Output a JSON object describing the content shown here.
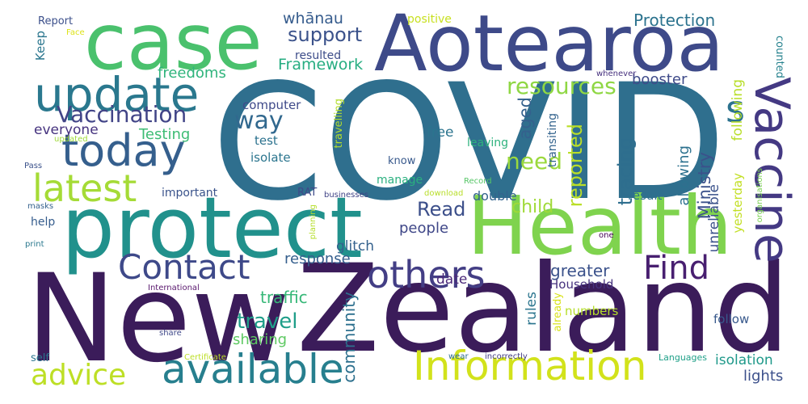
{
  "words": [
    {
      "text": "COVID",
      "color": "#2f6f8e"
    },
    {
      "text": "New",
      "color": "#3b1c5a"
    },
    {
      "text": "Zealand",
      "color": "#3b1c5a"
    },
    {
      "text": "protect",
      "color": "#21918c"
    },
    {
      "text": "Health",
      "color": "#7fd34e"
    },
    {
      "text": "Aotearoa",
      "color": "#3e4a89"
    },
    {
      "text": "case",
      "color": "#4ac16d"
    },
    {
      "text": "update",
      "color": "#2a788e"
    },
    {
      "text": "today",
      "color": "#355f8d"
    },
    {
      "text": "latest",
      "color": "#a5db36"
    },
    {
      "text": "Vaccine",
      "color": "#443983"
    },
    {
      "text": "available",
      "color": "#277f8e"
    },
    {
      "text": "Information",
      "color": "#d2e21b"
    },
    {
      "text": "advice",
      "color": "#bddf26"
    },
    {
      "text": "Contact",
      "color": "#3e4989"
    },
    {
      "text": "others",
      "color": "#433e85"
    },
    {
      "text": "Find",
      "color": "#481f70"
    },
    {
      "text": "Vaccination",
      "color": "#414487"
    },
    {
      "text": "resources",
      "color": "#8fd744"
    },
    {
      "text": "support",
      "color": "#3b528b"
    },
    {
      "text": "Protection",
      "color": "#2c738e"
    },
    {
      "text": "Framework",
      "color": "#26ad81"
    },
    {
      "text": "whānau",
      "color": "#365c8d"
    },
    {
      "text": "freedoms",
      "color": "#2fb47c"
    },
    {
      "text": "way",
      "color": "#31688e"
    },
    {
      "text": "need",
      "color": "#9bd93c"
    },
    {
      "text": "s",
      "color": "#2c728e"
    },
    {
      "text": "everyone",
      "color": "#46337f"
    },
    {
      "text": "Testing",
      "color": "#3dbc74"
    },
    {
      "text": "Read",
      "color": "#3c4f8a"
    },
    {
      "text": "response",
      "color": "#355f8d"
    },
    {
      "text": "people",
      "color": "#3f4788"
    },
    {
      "text": "child",
      "color": "#a0da39"
    },
    {
      "text": "travel",
      "color": "#1f9e89"
    },
    {
      "text": "traffic",
      "color": "#37b878"
    },
    {
      "text": "sharing",
      "color": "#5ec962"
    },
    {
      "text": "lights",
      "color": "#3c508b"
    },
    {
      "text": "isolation",
      "color": "#1f998a"
    },
    {
      "text": "booster",
      "color": "#3e4a89"
    },
    {
      "text": "reported",
      "color": "#bade28"
    },
    {
      "text": "aged",
      "color": "#34618d"
    },
    {
      "text": "tracing",
      "color": "#2e6e8e"
    },
    {
      "text": "Ministry",
      "color": "#3b518b"
    },
    {
      "text": "allowing",
      "color": "#2c718e"
    },
    {
      "text": "following",
      "color": "#b8de29"
    },
    {
      "text": "unreliable",
      "color": "#3b528b"
    },
    {
      "text": "yesterday",
      "color": "#c2df23"
    },
    {
      "text": "community",
      "color": "#2d708e"
    },
    {
      "text": "greater",
      "color": "#3b528b"
    },
    {
      "text": "Household",
      "color": "#46327e"
    },
    {
      "text": "follow",
      "color": "#38598c"
    },
    {
      "text": "date",
      "color": "#4c2a7a"
    },
    {
      "text": "glitch",
      "color": "#34618d"
    },
    {
      "text": "double",
      "color": "#33638d"
    },
    {
      "text": "result",
      "color": "#2d708e"
    },
    {
      "text": "rules",
      "color": "#2b758e"
    },
    {
      "text": "numbers",
      "color": "#b5de2b"
    },
    {
      "text": "already",
      "color": "#d8e219"
    },
    {
      "text": "Keep",
      "color": "#2a768e"
    },
    {
      "text": "resulted",
      "color": "#3d4d8a"
    },
    {
      "text": "free",
      "color": "#2b748e"
    },
    {
      "text": "positive",
      "color": "#c8e020"
    },
    {
      "text": "counted",
      "color": "#26828e"
    },
    {
      "text": "computer",
      "color": "#3e4989"
    },
    {
      "text": "test",
      "color": "#2c728e"
    },
    {
      "text": "isolate",
      "color": "#2b758e"
    },
    {
      "text": "travelling",
      "color": "#b2dd2d"
    },
    {
      "text": "know",
      "color": "#38598c"
    },
    {
      "text": "leaving",
      "color": "#2db27d"
    },
    {
      "text": "transiting",
      "color": "#33638d"
    },
    {
      "text": "manage",
      "color": "#2ab07f"
    },
    {
      "text": "important",
      "color": "#3a538b"
    },
    {
      "text": "RAT",
      "color": "#3e4a89"
    },
    {
      "text": "help",
      "color": "#365d8d"
    },
    {
      "text": "self",
      "color": "#2b758e"
    },
    {
      "text": "businesses",
      "color": "#414487"
    },
    {
      "text": "download",
      "color": "#b8de29"
    },
    {
      "text": "Record",
      "color": "#56c667"
    },
    {
      "text": "planning",
      "color": "#b5de2b"
    },
    {
      "text": "organisations",
      "color": "#7ad151"
    },
    {
      "text": "whenever",
      "color": "#46307e"
    },
    {
      "text": "one",
      "color": "#440154"
    },
    {
      "text": "Languages",
      "color": "#1fa088"
    },
    {
      "text": "incorrectly",
      "color": "#433d84"
    },
    {
      "text": "wear",
      "color": "#2e6f8e"
    },
    {
      "text": "masks",
      "color": "#34618d"
    },
    {
      "text": "Certificate",
      "color": "#bddf26"
    },
    {
      "text": "share",
      "color": "#3f4889"
    },
    {
      "text": "International",
      "color": "#5a186e"
    },
    {
      "text": "Report",
      "color": "#3c508b"
    },
    {
      "text": "Face",
      "color": "#dde318"
    },
    {
      "text": "updated",
      "color": "#9fda3a"
    },
    {
      "text": "Pass",
      "color": "#3b528b"
    },
    {
      "text": "print",
      "color": "#2a788e"
    }
  ]
}
